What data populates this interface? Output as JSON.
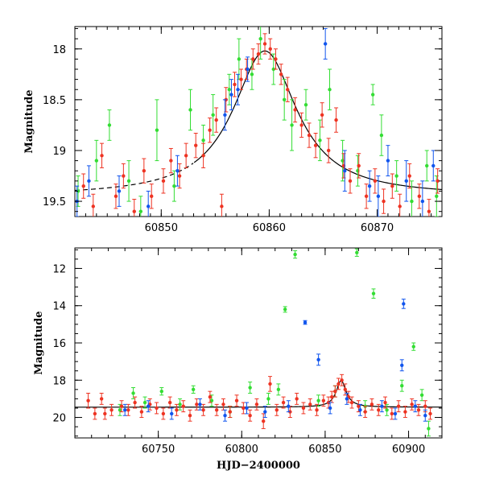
{
  "chart_data": [
    {
      "type": "scatter",
      "title": "",
      "xlabel": "",
      "ylabel": "Magnitude",
      "xlim": [
        60842,
        60876
      ],
      "ylim": [
        19.65,
        17.78
      ],
      "y_inverted": true,
      "x_ticks": [
        60850,
        60860,
        60870
      ],
      "y_ticks": [
        18,
        18.5,
        19,
        19.5
      ],
      "x_tick_labels": [
        "60850",
        "60860",
        "60870"
      ],
      "y_tick_labels": [
        "18",
        "18.5",
        "19",
        "19.5"
      ],
      "grid": false,
      "legend": "none",
      "colors": {
        "green": "#33dd33",
        "red": "#ee3322",
        "blue": "#1155ee",
        "model": "#000000"
      },
      "model_curve": {
        "style": "solid",
        "peak_x": 60859.6,
        "peak_y": 18.02,
        "baseline_y": 19.45,
        "width_days": 3.6,
        "dashed_x_before": 60853
      },
      "series": [
        {
          "color_key": "green",
          "points": [
            [
              60842.3,
              19.4,
              0.15
            ],
            [
              60844.0,
              19.1,
              0.2
            ],
            [
              60845.2,
              18.75,
              0.15
            ],
            [
              60847.0,
              19.3,
              0.2
            ],
            [
              60848.1,
              19.6,
              0.15
            ],
            [
              60849.6,
              18.8,
              0.3
            ],
            [
              60851.2,
              19.35,
              0.15
            ],
            [
              60852.7,
              18.6,
              0.2
            ],
            [
              60853.9,
              18.9,
              0.15
            ],
            [
              60854.8,
              18.65,
              0.2
            ],
            [
              60856.3,
              18.4,
              0.15
            ],
            [
              60857.2,
              18.1,
              0.2
            ],
            [
              60858.4,
              18.25,
              0.15
            ],
            [
              60859.2,
              17.9,
              0.2
            ],
            [
              60860.4,
              18.2,
              0.15
            ],
            [
              60861.4,
              18.5,
              0.2
            ],
            [
              60862.1,
              18.75,
              0.25
            ],
            [
              60863.4,
              18.55,
              0.15
            ],
            [
              60864.7,
              18.9,
              0.2
            ],
            [
              60865.6,
              18.4,
              0.2
            ],
            [
              60866.8,
              19.1,
              0.2
            ],
            [
              60868.2,
              19.2,
              0.15
            ],
            [
              60869.6,
              18.45,
              0.1
            ],
            [
              60870.4,
              18.85,
              0.2
            ],
            [
              60871.8,
              19.25,
              0.15
            ],
            [
              60873.2,
              19.5,
              0.2
            ],
            [
              60874.6,
              19.15,
              0.15
            ],
            [
              60875.5,
              19.45,
              0.2
            ]
          ]
        },
        {
          "color_key": "red",
          "points": [
            [
              60842.8,
              19.35,
              0.12
            ],
            [
              60843.7,
              19.55,
              0.12
            ],
            [
              60844.5,
              19.05,
              0.12
            ],
            [
              60845.8,
              19.45,
              0.12
            ],
            [
              60846.5,
              19.25,
              0.12
            ],
            [
              60847.5,
              19.6,
              0.12
            ],
            [
              60848.4,
              19.2,
              0.12
            ],
            [
              60849.1,
              19.45,
              0.12
            ],
            [
              60850.2,
              19.3,
              0.12
            ],
            [
              60850.9,
              19.1,
              0.12
            ],
            [
              60851.7,
              19.25,
              0.12
            ],
            [
              60852.3,
              19.05,
              0.12
            ],
            [
              60853.2,
              18.95,
              0.12
            ],
            [
              60853.9,
              19.05,
              0.12
            ],
            [
              60854.5,
              18.8,
              0.12
            ],
            [
              60855.1,
              18.7,
              0.12
            ],
            [
              60855.6,
              19.55,
              0.12
            ],
            [
              60856.0,
              18.5,
              0.12
            ],
            [
              60856.8,
              18.35,
              0.12
            ],
            [
              60857.4,
              18.3,
              0.1
            ],
            [
              60857.9,
              18.2,
              0.1
            ],
            [
              60858.5,
              18.1,
              0.1
            ],
            [
              60859.0,
              18.05,
              0.1
            ],
            [
              60859.6,
              17.95,
              0.1
            ],
            [
              60860.1,
              18.0,
              0.1
            ],
            [
              60860.6,
              18.1,
              0.1
            ],
            [
              60861.1,
              18.25,
              0.1
            ],
            [
              60861.7,
              18.4,
              0.12
            ],
            [
              60862.4,
              18.6,
              0.12
            ],
            [
              60863.0,
              18.75,
              0.12
            ],
            [
              60863.7,
              18.85,
              0.12
            ],
            [
              60864.3,
              18.95,
              0.12
            ],
            [
              60864.9,
              18.65,
              0.12
            ],
            [
              60865.5,
              19.0,
              0.12
            ],
            [
              60866.2,
              18.7,
              0.12
            ],
            [
              60866.9,
              19.15,
              0.12
            ],
            [
              60867.5,
              19.3,
              0.12
            ],
            [
              60868.3,
              19.15,
              0.12
            ],
            [
              60869.0,
              19.45,
              0.12
            ],
            [
              60869.8,
              19.3,
              0.12
            ],
            [
              60870.6,
              19.5,
              0.12
            ],
            [
              60871.4,
              19.35,
              0.12
            ],
            [
              60872.1,
              19.55,
              0.12
            ],
            [
              60873.0,
              19.25,
              0.12
            ],
            [
              60873.9,
              19.45,
              0.12
            ],
            [
              60874.8,
              19.6,
              0.12
            ],
            [
              60875.6,
              19.3,
              0.12
            ]
          ]
        },
        {
          "color_key": "blue",
          "points": [
            [
              60842.2,
              19.5,
              0.15
            ],
            [
              60843.3,
              19.3,
              0.15
            ],
            [
              60846.1,
              19.4,
              0.15
            ],
            [
              60848.8,
              19.55,
              0.15
            ],
            [
              60851.5,
              19.2,
              0.15
            ],
            [
              60855.9,
              18.65,
              0.15
            ],
            [
              60856.5,
              18.45,
              0.15
            ],
            [
              60857.1,
              18.4,
              0.15
            ],
            [
              60858.0,
              18.2,
              0.12
            ],
            [
              60865.2,
              17.95,
              0.15
            ],
            [
              60867.0,
              19.2,
              0.2
            ],
            [
              60869.3,
              19.35,
              0.15
            ],
            [
              60870.1,
              19.45,
              0.2
            ],
            [
              60871.0,
              19.1,
              0.15
            ],
            [
              60872.7,
              19.3,
              0.2
            ],
            [
              60874.2,
              19.5,
              0.2
            ],
            [
              60875.2,
              19.15,
              0.15
            ]
          ]
        }
      ]
    },
    {
      "type": "scatter",
      "title": "",
      "xlabel": "HJD−2400000",
      "ylabel": "Magnitude",
      "xlim": [
        60700,
        60920
      ],
      "ylim": [
        21.1,
        10.9
      ],
      "y_inverted": true,
      "x_ticks": [
        60750,
        60800,
        60850,
        60900
      ],
      "y_ticks": [
        12,
        14,
        16,
        18,
        20
      ],
      "x_tick_labels": [
        "60750",
        "60800",
        "60850",
        "60900"
      ],
      "y_tick_labels": [
        "12",
        "14",
        "16",
        "18",
        "20"
      ],
      "grid": false,
      "legend": "none",
      "colors": {
        "green": "#33dd33",
        "red": "#ee3322",
        "blue": "#1155ee",
        "model": "#000000"
      },
      "model_curve": {
        "style": "solid",
        "peak_x": 60859.6,
        "peak_y": 18.02,
        "baseline_y": 19.45,
        "width_days": 3.6
      },
      "series": [
        {
          "color_key": "green",
          "points": [
            [
              60727,
              19.6,
              0.3
            ],
            [
              60735,
              18.7,
              0.3
            ],
            [
              60742,
              19.2,
              0.3
            ],
            [
              60752,
              18.6,
              0.2
            ],
            [
              60763,
              19.3,
              0.3
            ],
            [
              60771,
              18.5,
              0.2
            ],
            [
              60782,
              19.1,
              0.3
            ],
            [
              60793,
              19.7,
              0.3
            ],
            [
              60805,
              18.4,
              0.3
            ],
            [
              60816,
              19.0,
              0.3
            ],
            [
              60822,
              18.5,
              0.3
            ],
            [
              60826,
              14.2,
              0.15
            ],
            [
              60832,
              11.25,
              0.2
            ],
            [
              60846,
              19.1,
              0.3
            ],
            [
              60856,
              18.6,
              0.3
            ],
            [
              60869,
              11.15,
              0.2
            ],
            [
              60874,
              19.4,
              0.3
            ],
            [
              60879,
              13.35,
              0.25
            ],
            [
              60887,
              19.6,
              0.3
            ],
            [
              60896,
              18.3,
              0.3
            ],
            [
              60903,
              16.2,
              0.2
            ],
            [
              60908,
              18.8,
              0.3
            ],
            [
              60912,
              20.6,
              0.4
            ]
          ]
        },
        {
          "color_key": "red",
          "points": [
            [
              60708,
              19.1,
              0.4
            ],
            [
              60712,
              19.8,
              0.3
            ],
            [
              60716,
              19.0,
              0.3
            ],
            [
              60718,
              19.8,
              0.3
            ],
            [
              60722,
              19.6,
              0.3
            ],
            [
              60728,
              19.4,
              0.3
            ],
            [
              60732,
              19.6,
              0.3
            ],
            [
              60736,
              19.2,
              0.3
            ],
            [
              60740,
              19.7,
              0.3
            ],
            [
              60745,
              19.3,
              0.3
            ],
            [
              60749,
              19.5,
              0.3
            ],
            [
              60753,
              19.8,
              0.3
            ],
            [
              60757,
              19.2,
              0.3
            ],
            [
              60761,
              19.6,
              0.3
            ],
            [
              60765,
              19.4,
              0.3
            ],
            [
              60769,
              19.9,
              0.3
            ],
            [
              60773,
              19.3,
              0.3
            ],
            [
              60777,
              19.6,
              0.3
            ],
            [
              60781,
              18.9,
              0.3
            ],
            [
              60785,
              19.6,
              0.3
            ],
            [
              60789,
              19.3,
              0.3
            ],
            [
              60793,
              19.7,
              0.3
            ],
            [
              60797,
              19.1,
              0.3
            ],
            [
              60801,
              19.5,
              0.3
            ],
            [
              60805,
              19.9,
              0.3
            ],
            [
              60809,
              19.3,
              0.3
            ],
            [
              60813,
              20.2,
              0.4
            ],
            [
              60817,
              18.2,
              0.4
            ],
            [
              60821,
              19.6,
              0.3
            ],
            [
              60825,
              19.2,
              0.3
            ],
            [
              60829,
              19.7,
              0.3
            ],
            [
              60833,
              19.0,
              0.3
            ],
            [
              60837,
              19.5,
              0.3
            ],
            [
              60841,
              19.3,
              0.3
            ],
            [
              60845,
              19.6,
              0.3
            ],
            [
              60849,
              19.1,
              0.3
            ],
            [
              60852,
              19.2,
              0.3
            ],
            [
              60854,
              18.9,
              0.3
            ],
            [
              60856,
              18.6,
              0.3
            ],
            [
              60858,
              18.2,
              0.3
            ],
            [
              60860,
              18.0,
              0.3
            ],
            [
              60862,
              18.5,
              0.3
            ],
            [
              60864,
              18.9,
              0.3
            ],
            [
              60866,
              19.2,
              0.3
            ],
            [
              60870,
              19.4,
              0.3
            ],
            [
              60874,
              19.7,
              0.3
            ],
            [
              60878,
              19.3,
              0.3
            ],
            [
              60882,
              19.6,
              0.3
            ],
            [
              60886,
              19.2,
              0.3
            ],
            [
              60890,
              19.8,
              0.3
            ],
            [
              60894,
              19.4,
              0.3
            ],
            [
              60898,
              19.7,
              0.3
            ],
            [
              60902,
              19.3,
              0.3
            ],
            [
              60906,
              19.6,
              0.3
            ],
            [
              60910,
              19.4,
              0.3
            ],
            [
              60913,
              19.8,
              0.3
            ]
          ]
        },
        {
          "color_key": "blue",
          "points": [
            [
              60730,
              19.6,
              0.3
            ],
            [
              60744,
              19.4,
              0.3
            ],
            [
              60758,
              19.8,
              0.3
            ],
            [
              60775,
              19.3,
              0.3
            ],
            [
              60790,
              19.9,
              0.3
            ],
            [
              60803,
              19.5,
              0.3
            ],
            [
              60814,
              19.7,
              0.3
            ],
            [
              60828,
              19.4,
              0.3
            ],
            [
              60838,
              14.9,
              0.1
            ],
            [
              60846,
              16.9,
              0.3
            ],
            [
              60853,
              19.5,
              0.3
            ],
            [
              60863,
              19.0,
              0.3
            ],
            [
              60871,
              19.6,
              0.3
            ],
            [
              60884,
              19.4,
              0.3
            ],
            [
              60892,
              19.8,
              0.3
            ],
            [
              60896,
              17.2,
              0.3
            ],
            [
              60897,
              13.9,
              0.25
            ],
            [
              60904,
              19.4,
              0.3
            ],
            [
              60910,
              19.9,
              0.3
            ]
          ]
        }
      ]
    }
  ]
}
